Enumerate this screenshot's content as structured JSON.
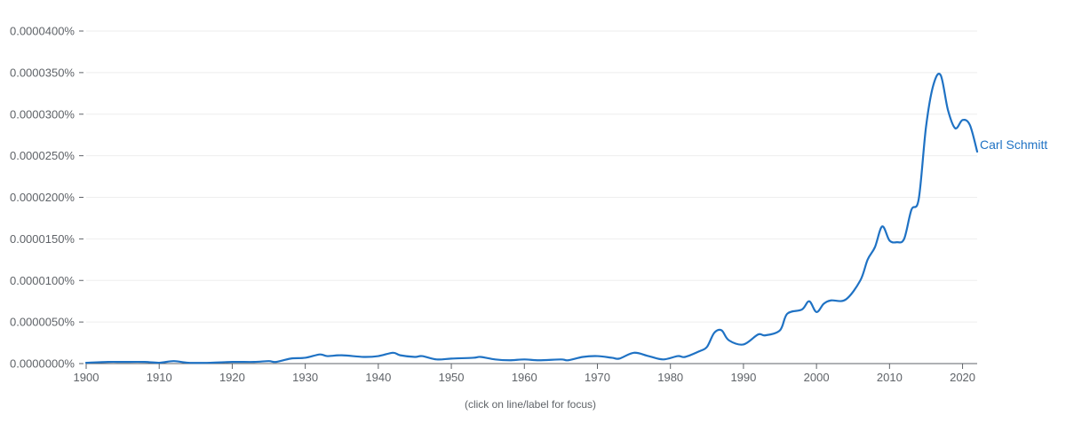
{
  "caption": "(click on line/label for focus)",
  "colors": {
    "series": "#1f72c4",
    "grid": "#eeeeee",
    "axis": "#5f6368",
    "text": "#5f6368"
  },
  "chart_data": {
    "type": "line",
    "title": "",
    "xlabel": "",
    "ylabel": "",
    "xlim": [
      1900,
      2022
    ],
    "ylim": [
      0,
      4e-05
    ],
    "grid": true,
    "x_ticks": [
      1900,
      1910,
      1920,
      1930,
      1940,
      1950,
      1960,
      1970,
      1980,
      1990,
      2000,
      2010,
      2020
    ],
    "y_ticks": [
      0,
      5e-06,
      1e-05,
      1.5e-05,
      2e-05,
      2.5e-05,
      3e-05,
      3.5e-05,
      4e-05
    ],
    "y_tick_labels": [
      "0.0000000%",
      "0.0000050%",
      "0.0000100%",
      "0.0000150%",
      "0.0000200%",
      "0.0000250%",
      "0.0000300%",
      "0.0000350%",
      "0.0000400%"
    ],
    "series": [
      {
        "name": "Carl Schmitt",
        "color": "#1f72c4",
        "points": [
          [
            1900,
            1e-07
          ],
          [
            1903,
            2e-07
          ],
          [
            1905,
            2e-07
          ],
          [
            1908,
            2e-07
          ],
          [
            1910,
            1e-07
          ],
          [
            1912,
            3e-07
          ],
          [
            1914,
            1e-07
          ],
          [
            1917,
            1e-07
          ],
          [
            1920,
            2e-07
          ],
          [
            1923,
            2e-07
          ],
          [
            1925,
            3e-07
          ],
          [
            1926,
            2e-07
          ],
          [
            1928,
            6e-07
          ],
          [
            1930,
            7e-07
          ],
          [
            1932,
            1.1e-06
          ],
          [
            1933,
            9e-07
          ],
          [
            1935,
            1e-06
          ],
          [
            1938,
            8e-07
          ],
          [
            1940,
            9e-07
          ],
          [
            1942,
            1.3e-06
          ],
          [
            1943,
            1e-06
          ],
          [
            1945,
            8e-07
          ],
          [
            1946,
            9e-07
          ],
          [
            1948,
            5e-07
          ],
          [
            1950,
            6e-07
          ],
          [
            1953,
            7e-07
          ],
          [
            1954,
            8e-07
          ],
          [
            1956,
            5e-07
          ],
          [
            1958,
            4e-07
          ],
          [
            1960,
            5e-07
          ],
          [
            1962,
            4e-07
          ],
          [
            1965,
            5e-07
          ],
          [
            1966,
            4e-07
          ],
          [
            1968,
            8e-07
          ],
          [
            1970,
            9e-07
          ],
          [
            1972,
            7e-07
          ],
          [
            1973,
            6e-07
          ],
          [
            1975,
            1.3e-06
          ],
          [
            1977,
            9e-07
          ],
          [
            1979,
            5e-07
          ],
          [
            1981,
            9e-07
          ],
          [
            1982,
            8e-07
          ],
          [
            1984,
            1.5e-06
          ],
          [
            1985,
            2e-06
          ],
          [
            1986,
            3.7e-06
          ],
          [
            1987,
            4e-06
          ],
          [
            1988,
            2.8e-06
          ],
          [
            1990,
            2.3e-06
          ],
          [
            1992,
            3.5e-06
          ],
          [
            1993,
            3.4e-06
          ],
          [
            1995,
            4e-06
          ],
          [
            1996,
            6e-06
          ],
          [
            1998,
            6.5e-06
          ],
          [
            1999,
            7.5e-06
          ],
          [
            2000,
            6.2e-06
          ],
          [
            2001,
            7.2e-06
          ],
          [
            2002,
            7.6e-06
          ],
          [
            2004,
            7.7e-06
          ],
          [
            2006,
            1e-05
          ],
          [
            2007,
            1.25e-05
          ],
          [
            2008,
            1.4e-05
          ],
          [
            2009,
            1.65e-05
          ],
          [
            2010,
            1.48e-05
          ],
          [
            2011,
            1.46e-05
          ],
          [
            2012,
            1.5e-05
          ],
          [
            2013,
            1.85e-05
          ],
          [
            2014,
            1.98e-05
          ],
          [
            2015,
            2.85e-05
          ],
          [
            2016,
            3.35e-05
          ],
          [
            2017,
            3.47e-05
          ],
          [
            2018,
            3.05e-05
          ],
          [
            2019,
            2.83e-05
          ],
          [
            2020,
            2.93e-05
          ],
          [
            2021,
            2.87e-05
          ],
          [
            2022,
            2.55e-05
          ]
        ]
      }
    ]
  }
}
